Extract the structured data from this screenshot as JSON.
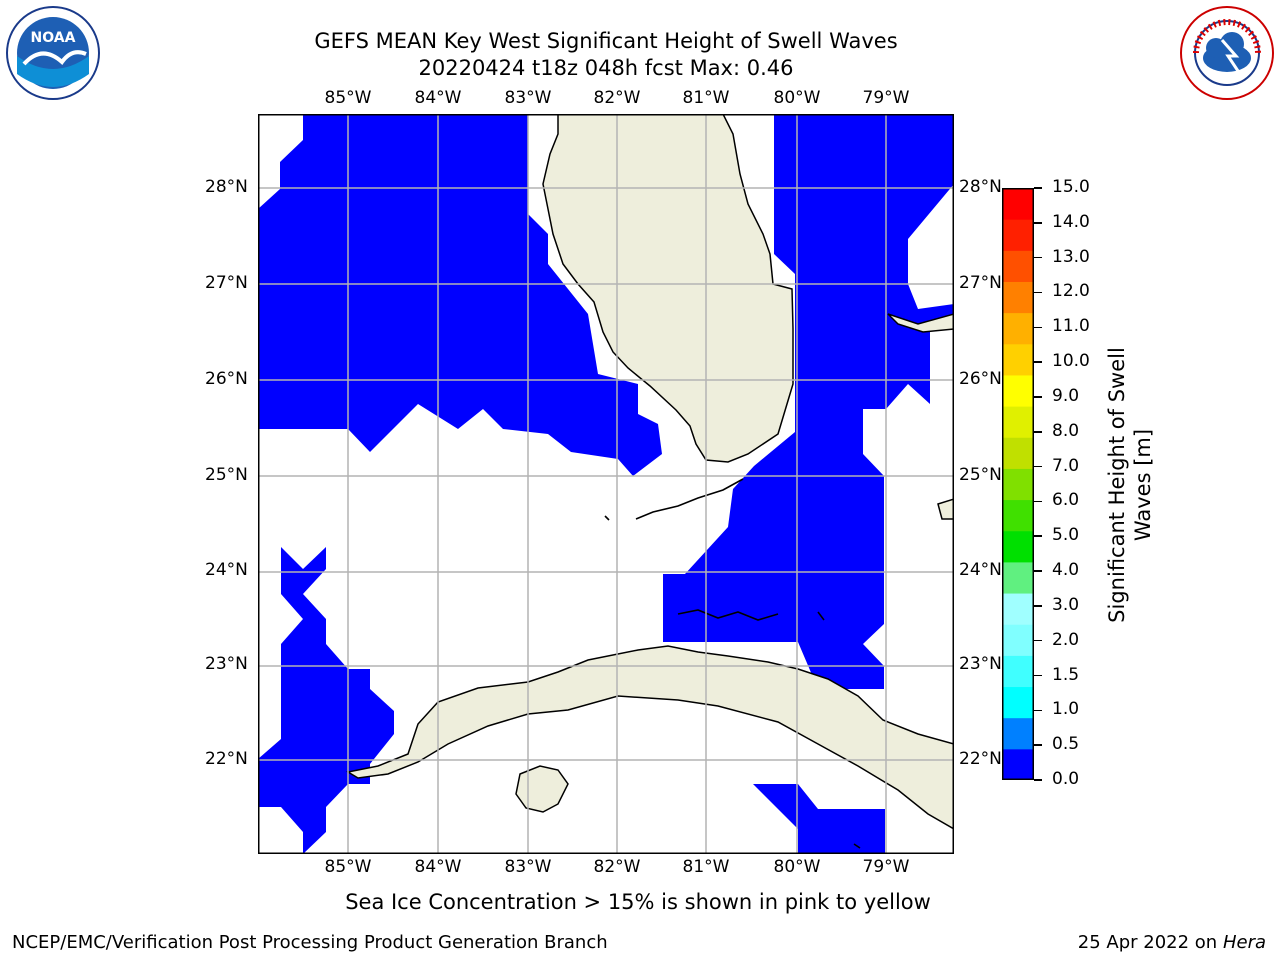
{
  "header": {
    "title_line1": "GEFS MEAN Key West Significant Height of Swell Waves",
    "title_line2": "20220424 t18z 048h fcst   Max: 0.46"
  },
  "logos": {
    "noaa": {
      "name": "noaa-logo",
      "text": "NOAA"
    },
    "nws": {
      "name": "nws-logo",
      "text": "NATIONAL WEATHER SERVICE"
    }
  },
  "map": {
    "lon_labels": [
      "85°W",
      "84°W",
      "83°W",
      "82°W",
      "81°W",
      "80°W",
      "79°W"
    ],
    "lat_labels": [
      "28°N",
      "27°N",
      "26°N",
      "25°N",
      "24°N",
      "23°N",
      "22°N"
    ],
    "ocean_fill_color": "#0000ff",
    "land_color": "#eeeedc"
  },
  "colorbar": {
    "label": "Significant Height of Swell Waves [m]",
    "ticks": [
      "0.0",
      "0.5",
      "1.0",
      "1.5",
      "2.0",
      "3.0",
      "4.0",
      "5.0",
      "6.0",
      "7.0",
      "8.0",
      "9.0",
      "10.0",
      "11.0",
      "12.0",
      "13.0",
      "14.0",
      "15.0"
    ],
    "colors": [
      "#0000ff",
      "#0080ff",
      "#00ffff",
      "#40ffff",
      "#80ffff",
      "#a0ffff",
      "#60f080",
      "#00e000",
      "#40e000",
      "#80e000",
      "#c0e000",
      "#e0f000",
      "#ffff00",
      "#ffd000",
      "#ffb000",
      "#ff8000",
      "#ff5000",
      "#ff2000",
      "#ff0000"
    ]
  },
  "footer": {
    "note": "Sea Ice Concentration > 15% is shown in pink to yellow",
    "credit": "NCEP/EMC/Verification Post Processing Product Generation Branch",
    "date_prefix": "25 Apr 2022 on ",
    "date_host": "Hera"
  }
}
